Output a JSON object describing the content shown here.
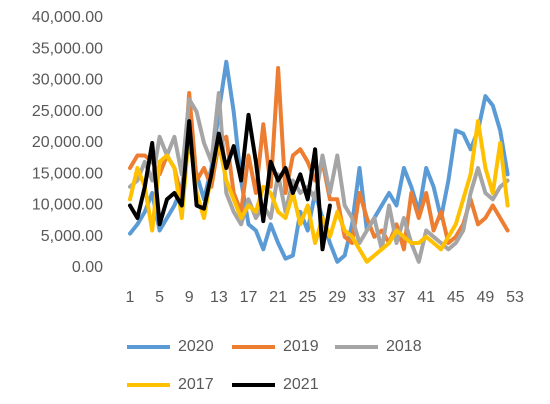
{
  "chart_data": {
    "type": "line",
    "x": [
      1,
      2,
      3,
      4,
      5,
      6,
      7,
      8,
      9,
      10,
      11,
      12,
      13,
      14,
      15,
      16,
      17,
      18,
      19,
      20,
      21,
      22,
      23,
      24,
      25,
      26,
      27,
      28,
      29,
      30,
      31,
      32,
      33,
      34,
      35,
      36,
      37,
      38,
      39,
      40,
      41,
      42,
      43,
      44,
      45,
      46,
      47,
      48,
      49,
      50,
      51,
      52,
      53
    ],
    "xlim": [
      1,
      53
    ],
    "xticks": [
      1,
      5,
      9,
      13,
      17,
      21,
      25,
      29,
      33,
      37,
      41,
      45,
      49,
      53
    ],
    "ylim": [
      0,
      40000
    ],
    "yticks": [
      {
        "value": 0,
        "label": "0.00"
      },
      {
        "value": 5000,
        "label": "5,000.00"
      },
      {
        "value": 10000,
        "label": "10,000.00"
      },
      {
        "value": 15000,
        "label": "15,000.00"
      },
      {
        "value": 20000,
        "label": "20,000.00"
      },
      {
        "value": 25000,
        "label": "25,000.00"
      },
      {
        "value": 30000,
        "label": "30,000.00"
      },
      {
        "value": 35000,
        "label": "35,000.00"
      },
      {
        "value": 40000,
        "label": "40,000.00"
      }
    ],
    "series": [
      {
        "name": "2020",
        "color": "#5b9bd5",
        "values": [
          5500,
          7000,
          9000,
          12000,
          6000,
          8000,
          10000,
          13000,
          20000,
          15000,
          11000,
          16000,
          25000,
          33000,
          25000,
          14000,
          7000,
          6000,
          3000,
          7000,
          4000,
          1500,
          2000,
          9000,
          6000,
          12000,
          8000,
          4000,
          1000,
          2000,
          7000,
          16000,
          6000,
          8000,
          10000,
          12000,
          10000,
          16000,
          13000,
          9000,
          16000,
          13000,
          8000,
          14000,
          22000,
          21500,
          19000,
          22000,
          27500,
          26000,
          22000,
          15000,
          null
        ]
      },
      {
        "name": "2019",
        "color": "#ed7d31",
        "values": [
          16000,
          18000,
          18000,
          17000,
          15000,
          18000,
          16000,
          11000,
          28000,
          14000,
          16000,
          13000,
          20000,
          21000,
          12000,
          9000,
          18000,
          12000,
          23000,
          13000,
          32000,
          12000,
          18000,
          19000,
          17000,
          14000,
          17000,
          11000,
          11000,
          5000,
          4000,
          12000,
          8000,
          5000,
          6000,
          4000,
          7000,
          3000,
          12000,
          8000,
          12000,
          6000,
          9000,
          4000,
          5000,
          7000,
          11000,
          7000,
          8000,
          10000,
          8000,
          6000,
          null
        ]
      },
      {
        "name": "2018",
        "color": "#a5a5a5",
        "values": [
          13000,
          14000,
          17000,
          14000,
          21000,
          18000,
          21000,
          15000,
          27000,
          25000,
          20000,
          17000,
          28000,
          12000,
          9000,
          7000,
          11000,
          8000,
          10000,
          8000,
          15000,
          9000,
          14000,
          12000,
          13000,
          11000,
          18000,
          12000,
          18000,
          10000,
          8000,
          4000,
          6000,
          8000,
          3000,
          10000,
          4000,
          8000,
          4000,
          1000,
          6000,
          5000,
          4000,
          3000,
          4000,
          6000,
          12000,
          16000,
          12000,
          11000,
          13000,
          14000,
          null
        ]
      },
      {
        "name": "2017",
        "color": "#ffc000",
        "values": [
          11000,
          16000,
          13000,
          6000,
          17000,
          18000,
          16000,
          8000,
          22000,
          12000,
          8000,
          15000,
          20000,
          14000,
          11000,
          8000,
          10000,
          9000,
          13000,
          12000,
          9000,
          8000,
          12000,
          7000,
          10000,
          4000,
          8000,
          5000,
          9000,
          6000,
          5000,
          3000,
          1000,
          2000,
          3000,
          4000,
          6000,
          5000,
          4000,
          4000,
          5000,
          4000,
          3000,
          5000,
          7000,
          11000,
          15000,
          23500,
          16000,
          12000,
          20000,
          10000,
          null
        ]
      },
      {
        "name": "2021",
        "color": "#000000",
        "values": [
          10000,
          8000,
          13000,
          20000,
          7000,
          11000,
          12000,
          10000,
          23500,
          10000,
          9500,
          15000,
          21500,
          16000,
          19500,
          14000,
          24500,
          17000,
          7500,
          17000,
          14000,
          16000,
          12000,
          15000,
          11000,
          19000,
          3000,
          10000,
          null,
          null,
          null,
          null,
          null,
          null,
          null,
          null,
          null,
          null,
          null,
          null,
          null,
          null,
          null,
          null,
          null,
          null,
          null,
          null,
          null,
          null,
          null,
          null,
          null
        ]
      }
    ]
  }
}
